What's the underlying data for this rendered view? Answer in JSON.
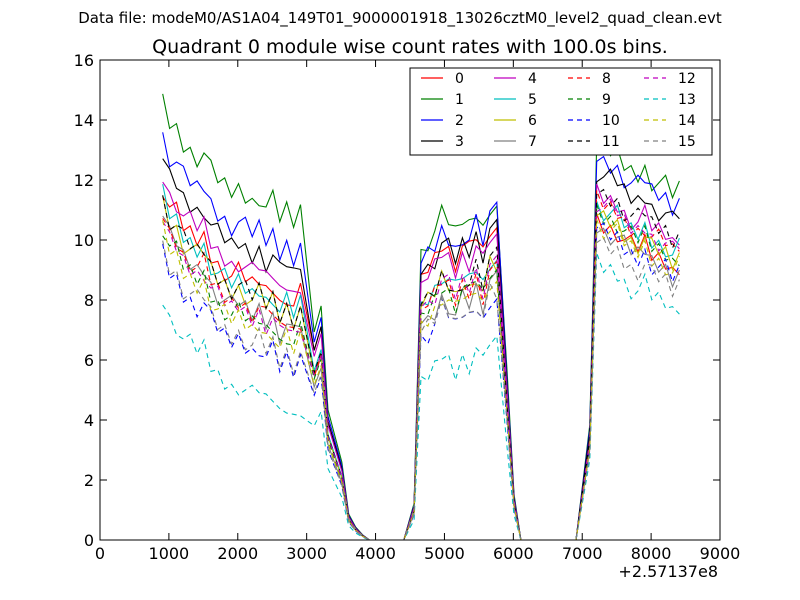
{
  "header": {
    "supertitle": "Data file: modeM0/AS1A04_149T01_9000001918_13026cztM0_level2_quad_clean.evt"
  },
  "chart_data": {
    "type": "line",
    "title": "Quadrant 0 module wise count rates with 100.0s bins.",
    "xlabel": "",
    "ylabel": "",
    "x_offset_label": "+2.57137e8",
    "xlim": [
      0,
      9000
    ],
    "ylim": [
      0,
      16
    ],
    "xticks": [
      0,
      1000,
      2000,
      3000,
      4000,
      5000,
      6000,
      7000,
      8000,
      9000
    ],
    "yticks": [
      0,
      2,
      4,
      6,
      8,
      10,
      12,
      14,
      16
    ],
    "grid": false,
    "legend_position": "top-right",
    "x_segments": [
      {
        "start": 910,
        "step": 100,
        "count": 21
      },
      {
        "start": 3110,
        "step": 100,
        "count": 14
      },
      {
        "start": 4560,
        "step": 100,
        "count": 13
      },
      {
        "start": 5910,
        "step": 100,
        "count": 11
      },
      {
        "start": 7110,
        "step": 100,
        "count": 14
      }
    ],
    "shape_template": {
      "seg1": [
        0,
        -0.7,
        -0.9,
        -1.4,
        -1.6,
        -1.8,
        -1.7,
        -2.3,
        -2.6,
        -2.8,
        -3.0,
        -2.9,
        -3.1,
        -3.3,
        -3.1,
        -3.5,
        -3.3,
        -3.9,
        -3.6,
        -4.0,
        -3.6
      ],
      "seg3": [
        -0.5,
        0.3,
        -0.2,
        0.1,
        0.6,
        0.4,
        0.0,
        0.5,
        0.3,
        0.8,
        0.2,
        1.0,
        0.4
      ],
      "seg5": [
        1.0,
        0.4,
        0.2,
        0.1,
        0.0,
        -0.3,
        -0.5,
        -0.6,
        -0.4,
        -0.8,
        -0.9,
        -1.0,
        -1.3,
        -1.1
      ]
    },
    "seg1_tail": [
      0.8,
      0.9,
      0.5,
      0.4,
      0.3,
      0.1,
      0.05,
      0.02,
      0.0,
      0.0,
      0.0,
      0.0,
      0.0,
      0.0
    ],
    "seg3_ramp": [
      0.0,
      0.15,
      0.55
    ],
    "seg3_tail": [
      0.55,
      0.15,
      0.0,
      0.0,
      0.0,
      0.0,
      0.0,
      0.0,
      0.0,
      0.0,
      0.0
    ],
    "seg5_ramp": [
      0.0,
      0.5
    ],
    "seg5_tail": [
      0.5,
      0.15
    ],
    "series": [
      {
        "name": "0",
        "color": "#ff0000",
        "dash": "solid",
        "a": 11.8,
        "b": 9.3,
        "c": 10.3
      },
      {
        "name": "1",
        "color": "#008000",
        "dash": "solid",
        "a": 14.6,
        "b": 10.2,
        "c": 12.8
      },
      {
        "name": "2",
        "color": "#0000ff",
        "dash": "solid",
        "a": 13.5,
        "b": 9.7,
        "c": 12.4
      },
      {
        "name": "3",
        "color": "#000000",
        "dash": "solid",
        "a": 12.8,
        "b": 9.3,
        "c": 11.9
      },
      {
        "name": "4",
        "color": "#bf00bf",
        "dash": "solid",
        "a": 12.2,
        "b": 9.0,
        "c": 11.2
      },
      {
        "name": "5",
        "color": "#00bfbf",
        "dash": "solid",
        "a": 11.5,
        "b": 8.3,
        "c": 10.8
      },
      {
        "name": "6",
        "color": "#bfbf00",
        "dash": "solid",
        "a": 11.3,
        "b": 8.1,
        "c": 10.5
      },
      {
        "name": "7",
        "color": "#808080",
        "dash": "solid",
        "a": 10.8,
        "b": 7.5,
        "c": 10.1
      },
      {
        "name": "8",
        "color": "#ff0000",
        "dash": "dashed",
        "a": 10.9,
        "b": 8.0,
        "c": 10.9
      },
      {
        "name": "9",
        "color": "#008000",
        "dash": "dashed",
        "a": 10.5,
        "b": 7.9,
        "c": 10.6
      },
      {
        "name": "10",
        "color": "#0000ff",
        "dash": "dashed",
        "a": 9.6,
        "b": 7.1,
        "c": 10.0
      },
      {
        "name": "11",
        "color": "#000000",
        "dash": "dashed",
        "a": 11.4,
        "b": 8.2,
        "c": 11.3
      },
      {
        "name": "12",
        "color": "#bf00bf",
        "dash": "dashed",
        "a": 10.7,
        "b": 8.1,
        "c": 10.9
      },
      {
        "name": "13",
        "color": "#00bfbf",
        "dash": "dashed",
        "a": 8.1,
        "b": 5.6,
        "c": 8.9
      },
      {
        "name": "14",
        "color": "#bfbf00",
        "dash": "dashed",
        "a": 10.3,
        "b": 7.6,
        "c": 10.2
      },
      {
        "name": "15",
        "color": "#808080",
        "dash": "dashed",
        "a": 9.8,
        "b": 7.2,
        "c": 9.6
      }
    ]
  }
}
